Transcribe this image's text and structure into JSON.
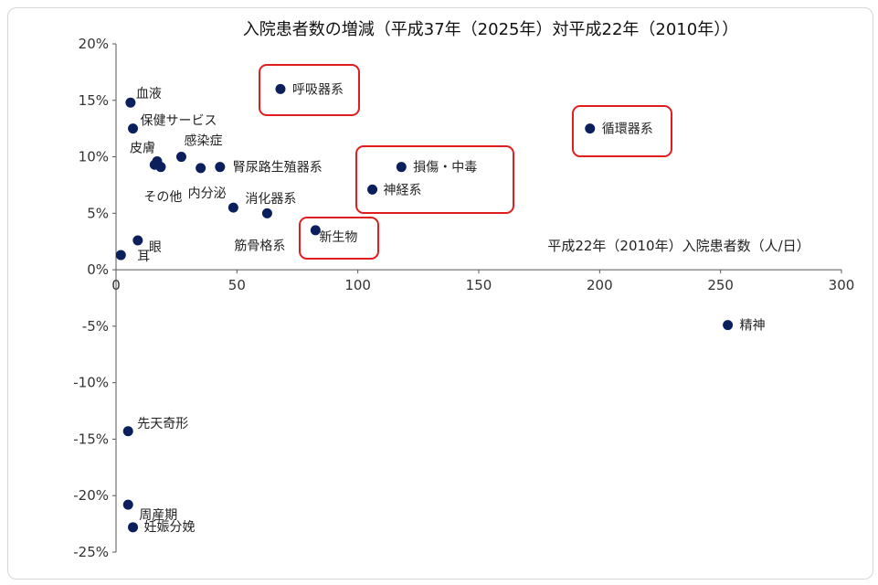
{
  "chart_data": {
    "type": "scatter",
    "title": "入院患者数の増減（平成37年（2025年）対平成22年（2010年））",
    "xlabel": "平成22年（2010年）入院患者数（人/日）",
    "ylabel": "",
    "xlim": [
      0,
      300
    ],
    "ylim": [
      -25,
      20
    ],
    "x_ticks": [
      0,
      50,
      100,
      150,
      200,
      250,
      300
    ],
    "x_tick_labels": [
      "0",
      "50",
      "100",
      "150",
      "200",
      "250",
      "300"
    ],
    "y_ticks": [
      20,
      15,
      10,
      5,
      0,
      -5,
      -10,
      -15,
      -20,
      -25
    ],
    "y_tick_labels": [
      "20%",
      "15%",
      "10%",
      "5%",
      "0%",
      "-5%",
      "-10%",
      "-15%",
      "-20%",
      "-25%"
    ],
    "grid": false,
    "marker_color": "#0a1f5c",
    "highlight_color": "#e01e1e",
    "points": [
      {
        "label": "血液",
        "x": 6,
        "y": 14.8
      },
      {
        "label": "保健サービス",
        "x": 7,
        "y": 12.5
      },
      {
        "label": "皮膚",
        "x": 17,
        "y": 9.6
      },
      {
        "label": "",
        "x": 18.5,
        "y": 9.1
      },
      {
        "label": "感染症",
        "x": 27,
        "y": 10.0
      },
      {
        "label": "内分泌",
        "x": 35,
        "y": 9.0
      },
      {
        "label": "腎尿路生殖器系",
        "x": 43,
        "y": 9.1
      },
      {
        "label": "その他",
        "x": 16,
        "y": 9.3
      },
      {
        "label": "消化器系",
        "x": 48.5,
        "y": 5.5
      },
      {
        "label": "筋骨格系",
        "x": 62.5,
        "y": 5.0
      },
      {
        "label": "呼吸器系",
        "x": 68,
        "y": 16.0
      },
      {
        "label": "新生物",
        "x": 82.5,
        "y": 3.5
      },
      {
        "label": "損傷・中毒",
        "x": 118,
        "y": 9.1
      },
      {
        "label": "神経系",
        "x": 106,
        "y": 7.1
      },
      {
        "label": "循環器系",
        "x": 196,
        "y": 12.5
      },
      {
        "label": "眼",
        "x": 9,
        "y": 2.6
      },
      {
        "label": "耳",
        "x": 2,
        "y": 1.3
      },
      {
        "label": "精神",
        "x": 253,
        "y": -4.9
      },
      {
        "label": "先天奇形",
        "x": 5,
        "y": -14.3
      },
      {
        "label": "周産期",
        "x": 5,
        "y": -20.8
      },
      {
        "label": "妊娠分娩",
        "x": 7,
        "y": -22.8
      }
    ],
    "highlighted": [
      "呼吸器系",
      "損傷・中毒",
      "神経系",
      "循環器系",
      "新生物"
    ]
  }
}
